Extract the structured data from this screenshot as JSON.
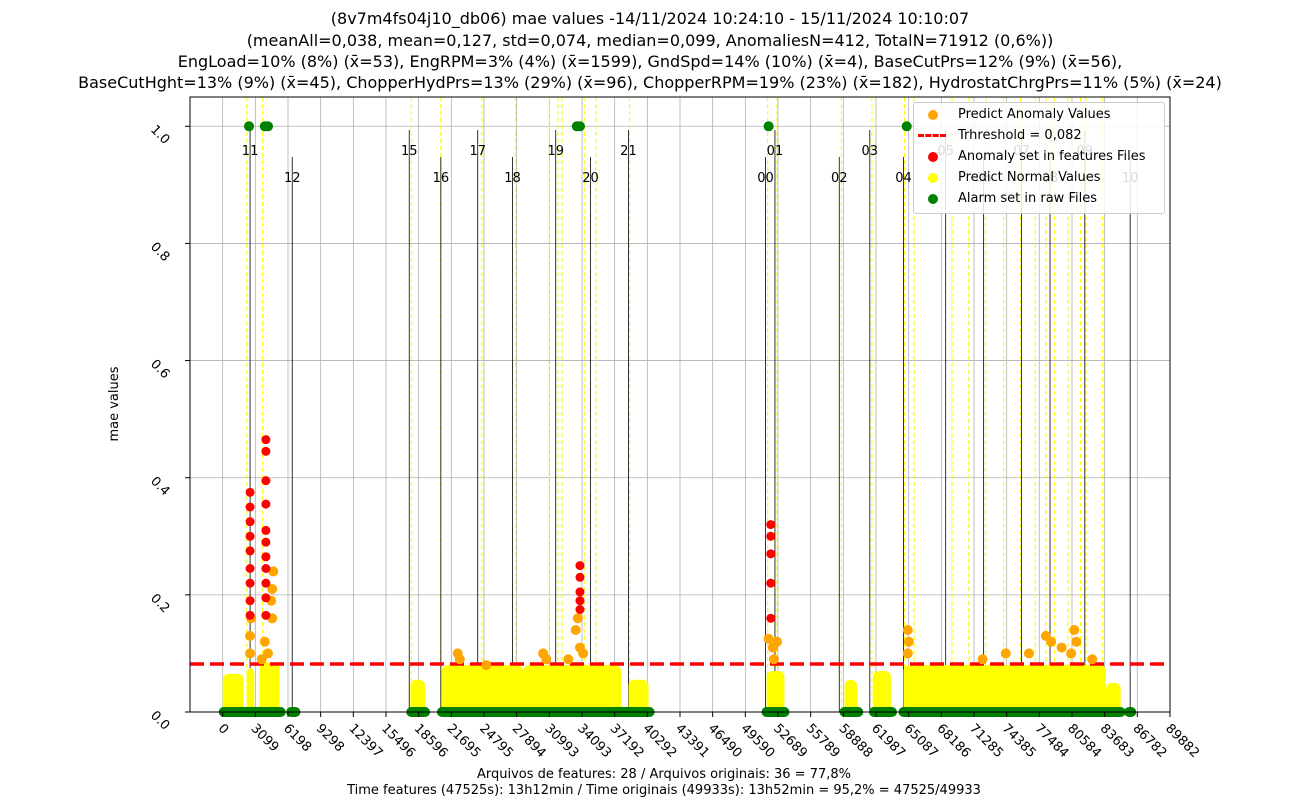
{
  "title_lines": [
    "(8v7m4fs04j10_db06) mae values -14/11/2024 10:24:10 - 15/11/2024 10:10:07",
    "(meanAll=0,038, mean=0,127, std=0,074, median=0,099, AnomaliesN=412, TotalN=71912 (0,6%))",
    "EngLoad=10% (8%) (x̄=53), EngRPM=3% (4%) (x̄=1599), GndSpd=14% (10%) (x̄=4), BaseCutPrs=12% (9%) (x̄=56),",
    "BaseCutHght=13% (9%) (x̄=45), ChopperHydPrs=13% (29%) (x̄=96), ChopperRPM=19% (23%) (x̄=182), HydrostatChrgPrs=11% (5%) (x̄=24)"
  ],
  "footer_lines": [
    "Arquivos de features: 28 / Arquivos originais: 36 = 77,8%",
    "Time features (47525s): 13h12min / Time originais (49933s): 13h52min = 95,2% = 47525/49933"
  ],
  "legend": {
    "anomaly_pred": "Predict Anomaly Values",
    "threshold": "Trhreshold = 0,082",
    "anomaly_files": "Anomaly set in features Files",
    "normal_pred": "Predict Normal Values",
    "alarm": "Alarm set in raw Files"
  },
  "colors": {
    "anomaly_pred": "#ffa500",
    "threshold": "#ff0000",
    "anomaly_files": "#ff0000",
    "normal_pred": "#ffff00",
    "alarm": "#008000",
    "grid": "#b0b0b0",
    "hour_line": "#000000",
    "file_line": "#ffff00"
  },
  "chart_data": {
    "type": "scatter",
    "title": "(8v7m4fs04j10_db06) mae values -14/11/2024 10:24:10 - 15/11/2024 10:10:07",
    "xlabel": "",
    "ylabel": "mae values",
    "xlim": [
      -3100,
      89882
    ],
    "ylim": [
      0,
      1.05
    ],
    "x_ticks": [
      0,
      3099,
      6198,
      9298,
      12397,
      15496,
      18596,
      21695,
      24795,
      27894,
      30993,
      34093,
      37192,
      40292,
      43391,
      46490,
      49590,
      52689,
      55789,
      58888,
      61987,
      65087,
      68186,
      71285,
      74385,
      77484,
      80584,
      83683,
      86782,
      89882
    ],
    "y_ticks": [
      0.0,
      0.2,
      0.4,
      0.6,
      0.8,
      1.0
    ],
    "threshold": 0.082,
    "grid": true,
    "legend_position": "top-right",
    "hour_markers": [
      {
        "label": "11",
        "x": 2600,
        "high": true
      },
      {
        "label": "12",
        "x": 6600,
        "high": false
      },
      {
        "label": "15",
        "x": 17700,
        "high": true
      },
      {
        "label": "16",
        "x": 20700,
        "high": false
      },
      {
        "label": "17",
        "x": 24200,
        "high": true
      },
      {
        "label": "18",
        "x": 27500,
        "high": false
      },
      {
        "label": "19",
        "x": 31600,
        "high": true
      },
      {
        "label": "20",
        "x": 34900,
        "high": false
      },
      {
        "label": "21",
        "x": 38500,
        "high": true
      },
      {
        "label": "00",
        "x": 51500,
        "high": false
      },
      {
        "label": "01",
        "x": 52400,
        "high": true
      },
      {
        "label": "02",
        "x": 58500,
        "high": false
      },
      {
        "label": "03",
        "x": 61400,
        "high": true
      },
      {
        "label": "04",
        "x": 64600,
        "high": false
      },
      {
        "label": "05",
        "x": 68600,
        "high": true
      },
      {
        "label": "06",
        "x": 72200,
        "high": false
      },
      {
        "label": "07",
        "x": 75800,
        "high": true
      },
      {
        "label": "08",
        "x": 78500,
        "high": false
      },
      {
        "label": "09",
        "x": 81800,
        "high": true
      },
      {
        "label": "10",
        "x": 86100,
        "high": false
      }
    ],
    "file_markers": [
      2300,
      3800,
      17900,
      20700,
      24600,
      27800,
      31000,
      31800,
      32200,
      34300,
      35400,
      38600,
      51700,
      52600,
      58700,
      61600,
      64700,
      65600,
      69200,
      70800,
      72400,
      74100,
      75700,
      77100,
      78100,
      78900,
      80200,
      81400,
      81900,
      83500
    ],
    "alarms_top": [
      {
        "x": 2500,
        "y": 1.0
      },
      {
        "x": 4000,
        "y": 1.0
      },
      {
        "x": 4300,
        "y": 1.0
      },
      {
        "x": 33600,
        "y": 1.0
      },
      {
        "x": 33900,
        "y": 1.0
      },
      {
        "x": 51800,
        "y": 1.0
      },
      {
        "x": 64900,
        "y": 1.0
      }
    ],
    "normal_segments": [
      {
        "x0": 0,
        "x1": 2000,
        "ymax": 0.065
      },
      {
        "x0": 2300,
        "x1": 3000,
        "ymax": 0.075
      },
      {
        "x0": 3500,
        "x1": 5400,
        "ymax": 0.085
      },
      {
        "x0": 17800,
        "x1": 19200,
        "ymax": 0.055
      },
      {
        "x0": 20800,
        "x1": 28500,
        "ymax": 0.08
      },
      {
        "x0": 28500,
        "x1": 37800,
        "ymax": 0.08
      },
      {
        "x0": 38500,
        "x1": 40400,
        "ymax": 0.055
      },
      {
        "x0": 51600,
        "x1": 53300,
        "ymax": 0.07
      },
      {
        "x0": 59000,
        "x1": 60200,
        "ymax": 0.055
      },
      {
        "x0": 61700,
        "x1": 63400,
        "ymax": 0.07
      },
      {
        "x0": 64600,
        "x1": 83800,
        "ymax": 0.08
      },
      {
        "x0": 83800,
        "x1": 85200,
        "ymax": 0.05
      }
    ],
    "anomaly_pred_points": [
      {
        "x": 2600,
        "y": 0.1
      },
      {
        "x": 2600,
        "y": 0.13
      },
      {
        "x": 2700,
        "y": 0.16
      },
      {
        "x": 4000,
        "y": 0.12
      },
      {
        "x": 4300,
        "y": 0.1
      },
      {
        "x": 4600,
        "y": 0.19
      },
      {
        "x": 4700,
        "y": 0.21
      },
      {
        "x": 4800,
        "y": 0.24
      },
      {
        "x": 4700,
        "y": 0.16
      },
      {
        "x": 3700,
        "y": 0.09
      },
      {
        "x": 22300,
        "y": 0.1
      },
      {
        "x": 22500,
        "y": 0.09
      },
      {
        "x": 25000,
        "y": 0.08
      },
      {
        "x": 30400,
        "y": 0.1
      },
      {
        "x": 30700,
        "y": 0.09
      },
      {
        "x": 32800,
        "y": 0.09
      },
      {
        "x": 33500,
        "y": 0.14
      },
      {
        "x": 33700,
        "y": 0.16
      },
      {
        "x": 33900,
        "y": 0.11
      },
      {
        "x": 34200,
        "y": 0.1
      },
      {
        "x": 51800,
        "y": 0.125
      },
      {
        "x": 52200,
        "y": 0.11
      },
      {
        "x": 52600,
        "y": 0.12
      },
      {
        "x": 52300,
        "y": 0.09
      },
      {
        "x": 65000,
        "y": 0.14
      },
      {
        "x": 65100,
        "y": 0.12
      },
      {
        "x": 65000,
        "y": 0.1
      },
      {
        "x": 72100,
        "y": 0.09
      },
      {
        "x": 74300,
        "y": 0.1
      },
      {
        "x": 76500,
        "y": 0.1
      },
      {
        "x": 78100,
        "y": 0.13
      },
      {
        "x": 78600,
        "y": 0.12
      },
      {
        "x": 79600,
        "y": 0.11
      },
      {
        "x": 80800,
        "y": 0.14
      },
      {
        "x": 81000,
        "y": 0.12
      },
      {
        "x": 80500,
        "y": 0.1
      },
      {
        "x": 82500,
        "y": 0.09
      }
    ],
    "anomaly_file_points": [
      {
        "x": 2600,
        "y": 0.375
      },
      {
        "x": 2600,
        "y": 0.35
      },
      {
        "x": 2600,
        "y": 0.325
      },
      {
        "x": 2600,
        "y": 0.3
      },
      {
        "x": 2600,
        "y": 0.275
      },
      {
        "x": 2600,
        "y": 0.245
      },
      {
        "x": 2600,
        "y": 0.22
      },
      {
        "x": 2600,
        "y": 0.19
      },
      {
        "x": 2600,
        "y": 0.165
      },
      {
        "x": 4100,
        "y": 0.465
      },
      {
        "x": 4100,
        "y": 0.445
      },
      {
        "x": 4100,
        "y": 0.395
      },
      {
        "x": 4100,
        "y": 0.355
      },
      {
        "x": 4100,
        "y": 0.31
      },
      {
        "x": 4100,
        "y": 0.29
      },
      {
        "x": 4100,
        "y": 0.265
      },
      {
        "x": 4100,
        "y": 0.245
      },
      {
        "x": 4100,
        "y": 0.22
      },
      {
        "x": 4100,
        "y": 0.195
      },
      {
        "x": 4100,
        "y": 0.165
      },
      {
        "x": 33900,
        "y": 0.25
      },
      {
        "x": 33900,
        "y": 0.23
      },
      {
        "x": 33900,
        "y": 0.205
      },
      {
        "x": 33900,
        "y": 0.19
      },
      {
        "x": 33900,
        "y": 0.175
      },
      {
        "x": 52000,
        "y": 0.32
      },
      {
        "x": 52000,
        "y": 0.3
      },
      {
        "x": 52000,
        "y": 0.27
      },
      {
        "x": 52000,
        "y": 0.22
      },
      {
        "x": 52000,
        "y": 0.16
      }
    ],
    "alarm_bottom_segments": [
      {
        "x0": 0,
        "x1": 5600
      },
      {
        "x0": 6400,
        "x1": 7000
      },
      {
        "x0": 17800,
        "x1": 19300
      },
      {
        "x0": 20700,
        "x1": 40600
      },
      {
        "x0": 51500,
        "x1": 53400
      },
      {
        "x0": 58900,
        "x1": 60400
      },
      {
        "x0": 61700,
        "x1": 63600
      },
      {
        "x0": 64500,
        "x1": 85300
      },
      {
        "x0": 85900,
        "x1": 86300
      }
    ]
  }
}
